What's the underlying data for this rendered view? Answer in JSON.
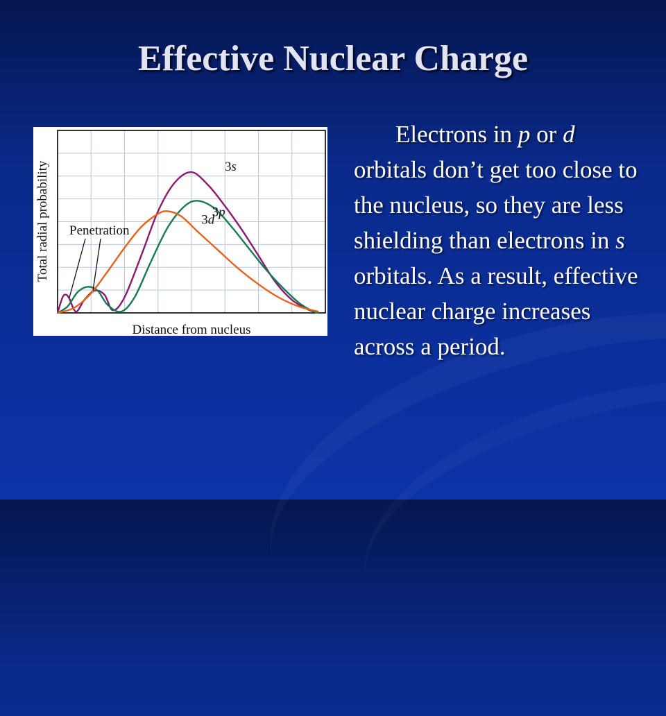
{
  "slide": {
    "title": "Effective Nuclear Charge"
  },
  "body": {
    "parts": [
      {
        "text": "Electrons in ",
        "italic": false
      },
      {
        "text": "p",
        "italic": true
      },
      {
        "text": " or ",
        "italic": false
      },
      {
        "text": "d",
        "italic": true
      },
      {
        "text": " orbitals don’t get too close to the nucleus, so they are less shielding than electrons in ",
        "italic": false
      },
      {
        "text": "s",
        "italic": true
      },
      {
        "text": " orbitals.  As a result, effective nuclear charge increases across a period.",
        "italic": false
      }
    ]
  },
  "chart_data": {
    "type": "line",
    "xlabel": "Distance from nucleus",
    "ylabel": "Total radial probability",
    "annotation": "Penetration",
    "xlim": [
      0,
      8
    ],
    "ylim": [
      0,
      7
    ],
    "grid": true,
    "series": [
      {
        "name": "3s",
        "color": "#8b1a6f",
        "x": [
          0,
          0.15,
          0.25,
          0.35,
          0.55,
          0.8,
          1.1,
          1.4,
          1.65,
          2.0,
          2.5,
          3.0,
          3.5,
          4.0,
          4.5,
          5.0,
          5.5,
          6.0,
          6.5,
          7.0,
          7.5,
          7.8
        ],
        "y": [
          0,
          0.6,
          0.7,
          0.55,
          0.05,
          0.5,
          0.85,
          0.7,
          0.1,
          0.6,
          2.2,
          3.9,
          5.0,
          5.4,
          4.9,
          4.1,
          3.2,
          2.2,
          1.2,
          0.5,
          0.12,
          0
        ]
      },
      {
        "name": "3p",
        "color": "#167a52",
        "x": [
          0,
          0.3,
          0.6,
          0.9,
          1.2,
          1.5,
          1.9,
          2.3,
          2.8,
          3.3,
          3.8,
          4.2,
          4.7,
          5.2,
          5.7,
          6.2,
          6.7,
          7.2,
          7.6,
          7.8
        ],
        "y": [
          0,
          0.25,
          0.8,
          1.0,
          0.85,
          0.3,
          0.05,
          0.6,
          2.0,
          3.3,
          4.1,
          4.3,
          4.0,
          3.3,
          2.5,
          1.7,
          1.0,
          0.4,
          0.08,
          0
        ]
      },
      {
        "name": "3d",
        "color": "#e5631b",
        "x": [
          0,
          0.5,
          1.0,
          1.5,
          2.0,
          2.5,
          3.0,
          3.3,
          3.7,
          4.2,
          4.8,
          5.4,
          6.0,
          6.6,
          7.2,
          7.8
        ],
        "y": [
          0,
          0.2,
          0.75,
          1.6,
          2.5,
          3.3,
          3.8,
          3.9,
          3.7,
          3.1,
          2.4,
          1.7,
          1.1,
          0.6,
          0.25,
          0.05
        ]
      }
    ]
  }
}
